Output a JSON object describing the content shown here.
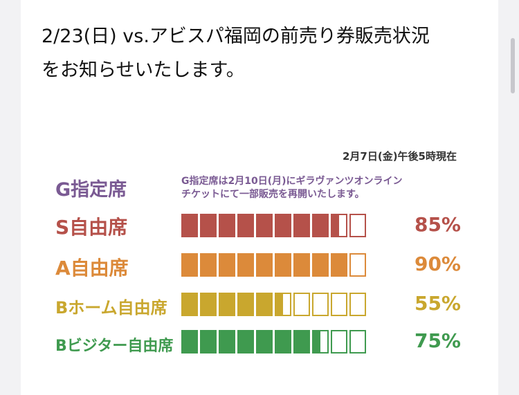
{
  "intro": {
    "line1": "2/23(日) vs.アビスパ福岡の前売り券販売状況",
    "line2": "をお知らせいたします。"
  },
  "graphic": {
    "timestamp": "2月7日(金)午後5時現在",
    "g_seat": {
      "label": "G指定席",
      "notice_line1": "G指定席は2月10日(月)にギラヴァンツオンライン",
      "notice_line2": "チケットにて一部販売を再開いたします。",
      "color": "#7a5a93"
    },
    "rows": [
      {
        "label": "S自由席",
        "percent_text": "85%",
        "fraction": 0.85,
        "color": "#b5514a"
      },
      {
        "label": "A自由席",
        "percent_text": "90%",
        "fraction": 0.9,
        "color": "#dc8a3a"
      },
      {
        "label": "Bホーム自由席",
        "percent_text": "55%",
        "fraction": 0.55,
        "color": "#c9a72e"
      },
      {
        "label": "Bビジター自由席",
        "percent_text": "75%",
        "fraction": 0.75,
        "color": "#3f9a4f"
      }
    ],
    "segments": 10
  }
}
